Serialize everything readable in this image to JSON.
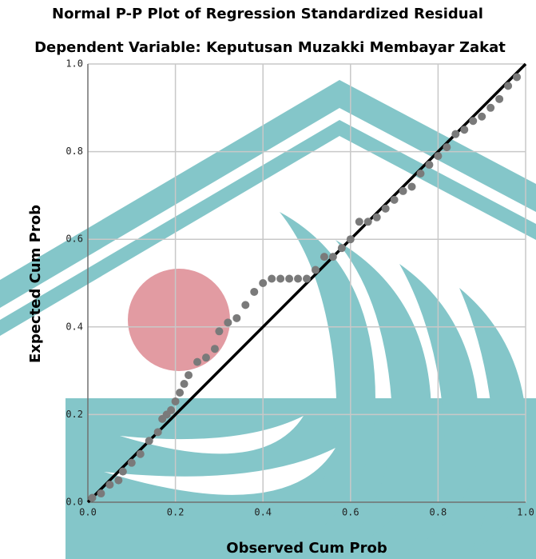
{
  "chart_data": {
    "type": "scatter",
    "title": "Normal P-P Plot of Regression Standardized Residual",
    "subtitle": "Dependent Variable: Keputusan Muzakki Membayar Zakat",
    "x_label": "Observed Cum Prob",
    "y_label": "Expected Cum Prob",
    "xlim": [
      0,
      1
    ],
    "ylim": [
      0,
      1
    ],
    "xticks": [
      {
        "value": 0,
        "label": "0.0"
      },
      {
        "value": 0.2,
        "label": "0.2"
      },
      {
        "value": 0.4,
        "label": "0.4"
      },
      {
        "value": 0.6,
        "label": "0.6"
      },
      {
        "value": 0.8,
        "label": "0.8"
      },
      {
        "value": 1,
        "label": "1.0"
      }
    ],
    "yticks": [
      {
        "value": 0,
        "label": "0.0"
      },
      {
        "value": 0.2,
        "label": "0.2"
      },
      {
        "value": 0.4,
        "label": "0.4"
      },
      {
        "value": 0.6,
        "label": "0.6"
      },
      {
        "value": 0.8,
        "label": "0.8"
      },
      {
        "value": 1,
        "label": "1.0"
      }
    ],
    "grid": true,
    "color": "#7a7a7a",
    "reference_line": {
      "x": [
        0,
        1
      ],
      "y": [
        0,
        1
      ],
      "color": "#000000"
    },
    "x": [
      0.01,
      0.03,
      0.05,
      0.07,
      0.08,
      0.1,
      0.12,
      0.14,
      0.16,
      0.17,
      0.18,
      0.19,
      0.2,
      0.21,
      0.22,
      0.23,
      0.25,
      0.27,
      0.29,
      0.3,
      0.32,
      0.34,
      0.36,
      0.38,
      0.4,
      0.42,
      0.44,
      0.46,
      0.48,
      0.5,
      0.52,
      0.54,
      0.56,
      0.58,
      0.6,
      0.62,
      0.64,
      0.66,
      0.68,
      0.7,
      0.72,
      0.74,
      0.76,
      0.78,
      0.8,
      0.82,
      0.84,
      0.86,
      0.88,
      0.9,
      0.92,
      0.94,
      0.96,
      0.98
    ],
    "values": [
      0.01,
      0.02,
      0.04,
      0.05,
      0.07,
      0.09,
      0.11,
      0.14,
      0.16,
      0.19,
      0.2,
      0.21,
      0.23,
      0.25,
      0.27,
      0.29,
      0.32,
      0.33,
      0.35,
      0.39,
      0.41,
      0.42,
      0.45,
      0.48,
      0.5,
      0.51,
      0.51,
      0.51,
      0.51,
      0.51,
      0.53,
      0.56,
      0.56,
      0.58,
      0.6,
      0.64,
      0.64,
      0.65,
      0.67,
      0.69,
      0.71,
      0.72,
      0.75,
      0.77,
      0.79,
      0.81,
      0.84,
      0.85,
      0.87,
      0.88,
      0.9,
      0.92,
      0.95,
      0.97
    ]
  }
}
